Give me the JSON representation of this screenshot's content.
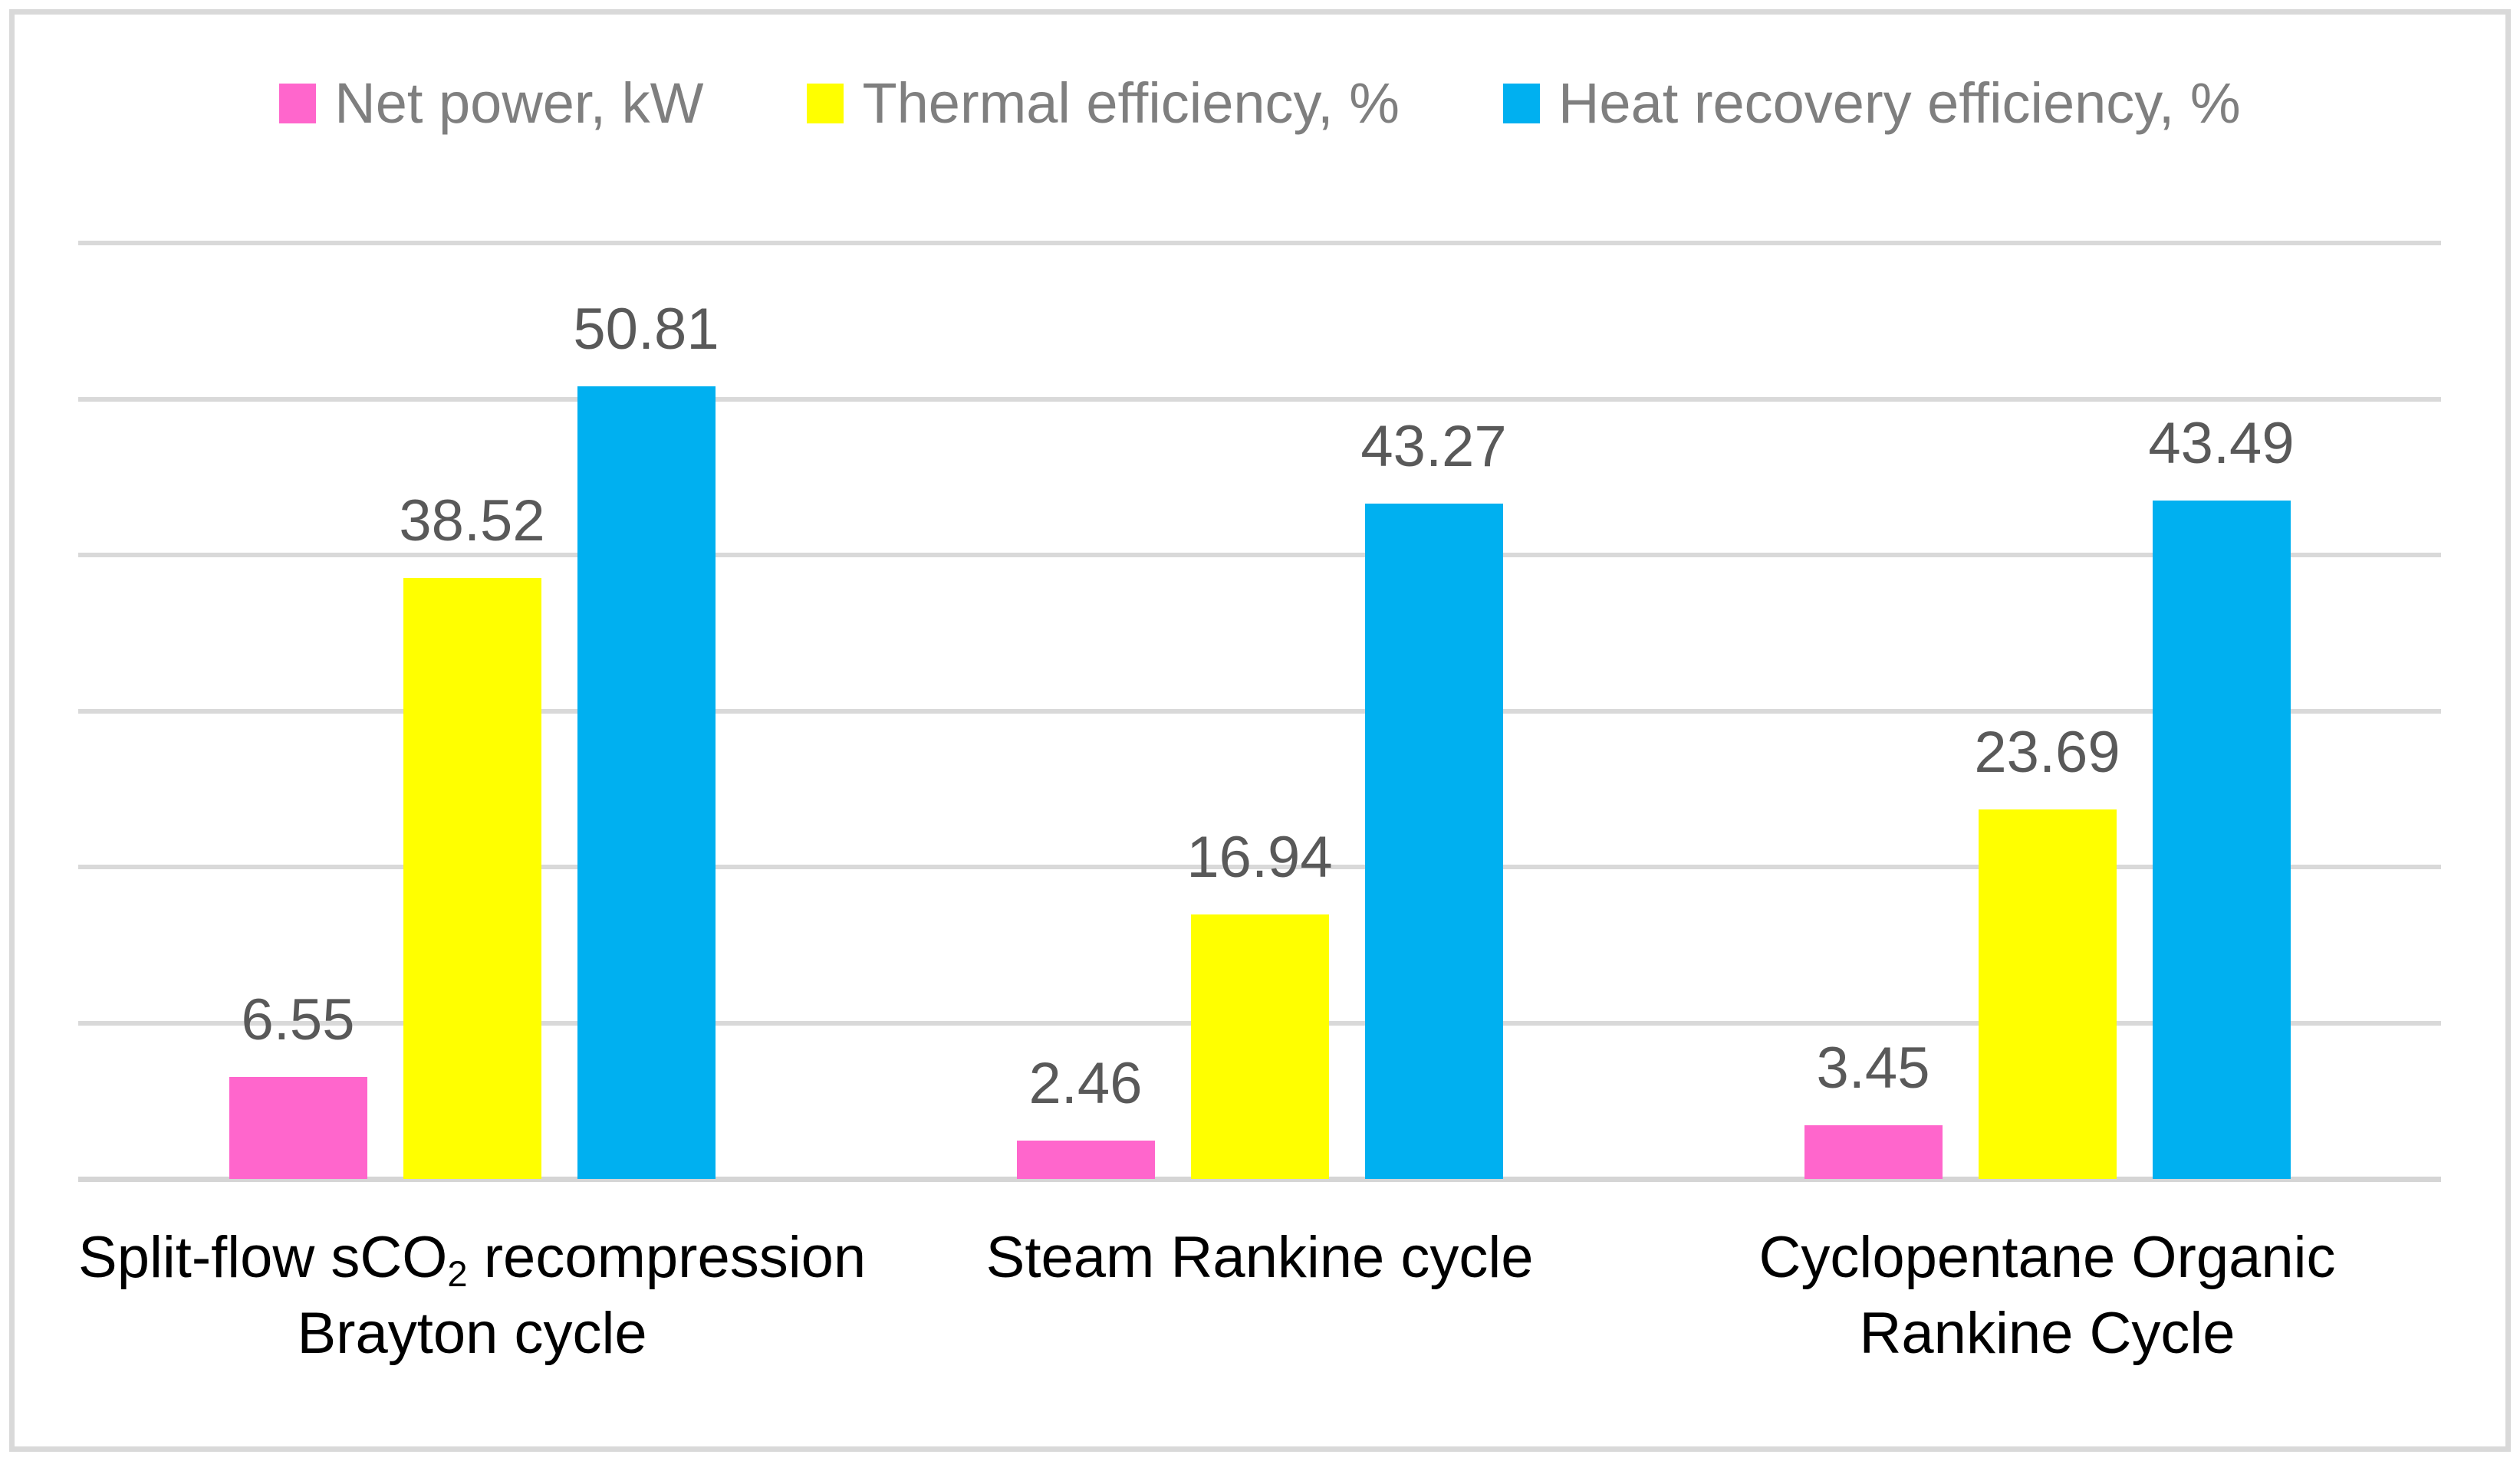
{
  "legend": {
    "items": [
      {
        "label": "Net power, kW",
        "color": "#FF66CC"
      },
      {
        "label": "Thermal efficiency, %",
        "color": "#FFFF00"
      },
      {
        "label": "Heat recovery efficiency, %",
        "color": "#00B0F0"
      }
    ]
  },
  "chart_data": {
    "type": "bar",
    "title": "",
    "categories": [
      "Split-flow sCO2 recompression Brayton cycle",
      "Steam Rankine cycle",
      "Cyclopentane Organic Rankine Cycle"
    ],
    "category_label_parts": [
      {
        "line1_pre": "Split-flow sCO",
        "line1_sub": "2",
        "line1_post": " recompression",
        "line2": "Brayton cycle"
      },
      {
        "line1_pre": "Steam Rankine cycle",
        "line1_sub": "",
        "line1_post": "",
        "line2": ""
      },
      {
        "line1_pre": "Cyclopentane Organic",
        "line1_sub": "",
        "line1_post": "",
        "line2": "Rankine Cycle"
      }
    ],
    "series": [
      {
        "name": "Net power, kW",
        "color": "#FF66CC",
        "values": [
          6.55,
          2.46,
          3.45
        ]
      },
      {
        "name": "Thermal efficiency, %",
        "color": "#FFFF00",
        "values": [
          38.52,
          16.94,
          23.69
        ]
      },
      {
        "name": "Heat recovery efficiency, %",
        "color": "#00B0F0",
        "values": [
          50.81,
          43.27,
          43.49
        ]
      }
    ],
    "xlabel": "",
    "ylabel": "",
    "ylim": [
      0,
      60
    ],
    "gridline_interval": 10,
    "grid": true,
    "y_axis_tick_labels_visible": false,
    "legend_position": "top",
    "value_label_format": "2 decimals above each bar"
  },
  "colors": {
    "frame": "#D9D9D9",
    "gridline": "#D9D9D9",
    "axis_line": "#D5D5D5",
    "value_label_text": "#595959",
    "legend_text": "#7F7F7F",
    "category_text": "#000000",
    "background": "#FFFFFF"
  }
}
